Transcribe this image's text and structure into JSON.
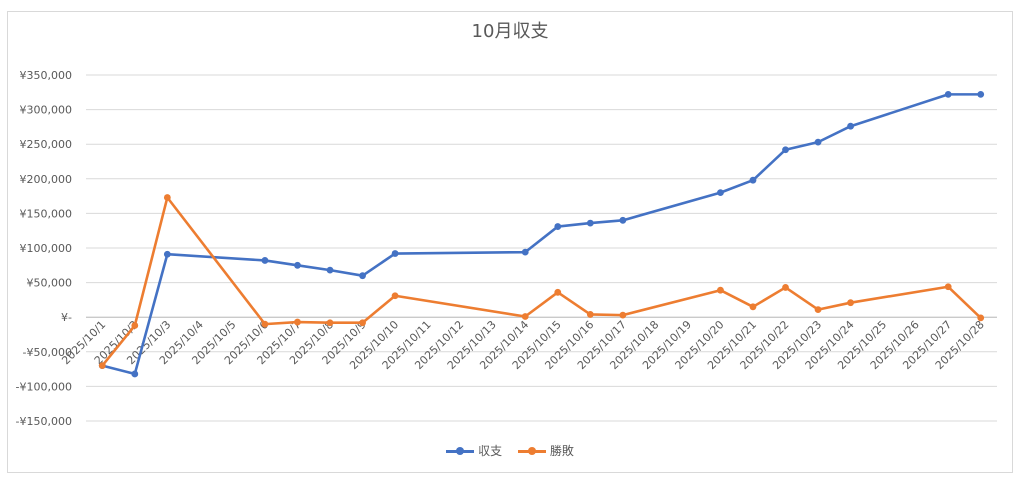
{
  "chart_data": {
    "type": "line",
    "title": "10月収支",
    "categories": [
      "2025/10/1",
      "2025/10/2",
      "2025/10/3",
      "2025/10/4",
      "2025/10/5",
      "2025/10/6",
      "2025/10/7",
      "2025/10/8",
      "2025/10/9",
      "2025/10/10",
      "2025/10/11",
      "2025/10/12",
      "2025/10/13",
      "2025/10/14",
      "2025/10/15",
      "2025/10/16",
      "2025/10/17",
      "2025/10/18",
      "2025/10/19",
      "2025/10/20",
      "2025/10/21",
      "2025/10/22",
      "2025/10/23",
      "2025/10/24",
      "2025/10/25",
      "2025/10/26",
      "2025/10/27",
      "2025/10/28"
    ],
    "y_tick_labels": [
      "¥350,000",
      "¥300,000",
      "¥250,000",
      "¥200,000",
      "¥150,000",
      "¥100,000",
      "¥50,000",
      "¥-",
      "-¥50,000",
      "-¥100,000",
      "-¥150,000"
    ],
    "ylim": [
      -150000,
      350000
    ],
    "grid": true,
    "legend_position": "bottom",
    "series": [
      {
        "name": "収支",
        "color": "#4472c4",
        "points": [
          {
            "x": "2025/10/1",
            "y": -70000
          },
          {
            "x": "2025/10/2",
            "y": -82000
          },
          {
            "x": "2025/10/3",
            "y": 91000
          },
          {
            "x": "2025/10/6",
            "y": 82000
          },
          {
            "x": "2025/10/7",
            "y": 75000
          },
          {
            "x": "2025/10/8",
            "y": 68000
          },
          {
            "x": "2025/10/9",
            "y": 60000
          },
          {
            "x": "2025/10/10",
            "y": 92000
          },
          {
            "x": "2025/10/14",
            "y": 94000
          },
          {
            "x": "2025/10/15",
            "y": 131000
          },
          {
            "x": "2025/10/16",
            "y": 136000
          },
          {
            "x": "2025/10/17",
            "y": 140000
          },
          {
            "x": "2025/10/20",
            "y": 180000
          },
          {
            "x": "2025/10/21",
            "y": 198000
          },
          {
            "x": "2025/10/22",
            "y": 242000
          },
          {
            "x": "2025/10/23",
            "y": 253000
          },
          {
            "x": "2025/10/24",
            "y": 276000
          },
          {
            "x": "2025/10/27",
            "y": 322000
          },
          {
            "x": "2025/10/28",
            "y": 322000
          }
        ]
      },
      {
        "name": "勝敗",
        "color": "#ed7d31",
        "points": [
          {
            "x": "2025/10/1",
            "y": -70000
          },
          {
            "x": "2025/10/2",
            "y": -12000
          },
          {
            "x": "2025/10/3",
            "y": 173000
          },
          {
            "x": "2025/10/6",
            "y": -10000
          },
          {
            "x": "2025/10/7",
            "y": -7000
          },
          {
            "x": "2025/10/8",
            "y": -8000
          },
          {
            "x": "2025/10/9",
            "y": -8000
          },
          {
            "x": "2025/10/10",
            "y": 31000
          },
          {
            "x": "2025/10/14",
            "y": 1000
          },
          {
            "x": "2025/10/15",
            "y": 36000
          },
          {
            "x": "2025/10/16",
            "y": 4000
          },
          {
            "x": "2025/10/17",
            "y": 3000
          },
          {
            "x": "2025/10/20",
            "y": 39000
          },
          {
            "x": "2025/10/21",
            "y": 15000
          },
          {
            "x": "2025/10/22",
            "y": 43000
          },
          {
            "x": "2025/10/23",
            "y": 11000
          },
          {
            "x": "2025/10/24",
            "y": 21000
          },
          {
            "x": "2025/10/27",
            "y": 44000
          },
          {
            "x": "2025/10/28",
            "y": -1000
          }
        ]
      }
    ]
  }
}
